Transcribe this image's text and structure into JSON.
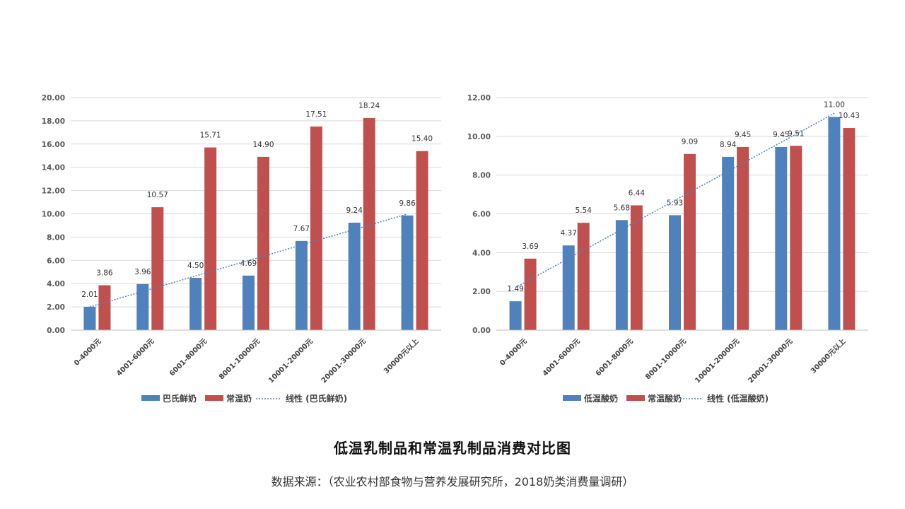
{
  "caption": {
    "title": "低温乳制品和常温乳制品消费对比图",
    "source": "数据来源：（农业农村部食物与营养发展研究所，2018奶类消费量调研）"
  },
  "colors": {
    "blue": "#4f81bd",
    "red": "#c0504d",
    "grid": "#d9d9d9",
    "trend": "#4f81bd"
  },
  "chart_data": [
    {
      "type": "bar",
      "categories": [
        "0-4000元",
        "4001-6000元",
        "6001-8000元",
        "8001-10000元",
        "10001-20000元",
        "20001-30000元",
        "30000元以上"
      ],
      "series": [
        {
          "name": "巴氏鲜奶",
          "values": [
            2.01,
            3.96,
            4.5,
            4.69,
            7.67,
            9.24,
            9.86
          ],
          "labels": [
            "2.01",
            "3.96",
            "4.50",
            "4.69",
            "7.67",
            "9.24",
            "9.86"
          ],
          "color": "#4f81bd"
        },
        {
          "name": "常温奶",
          "values": [
            3.86,
            10.57,
            15.71,
            14.9,
            17.51,
            18.24,
            15.4
          ],
          "labels": [
            "3.86",
            "10.57",
            "15.71",
            "14.90",
            "17.51",
            "18.24",
            "15.40"
          ],
          "color": "#c0504d"
        }
      ],
      "trendline": {
        "name": "线性 (巴氏鲜奶)",
        "of_series": 0
      },
      "yticks": [
        "0.00",
        "2.00",
        "4.00",
        "6.00",
        "8.00",
        "10.00",
        "12.00",
        "14.00",
        "16.00",
        "18.00",
        "20.00"
      ],
      "ylim": [
        0,
        20
      ],
      "grid": true,
      "legend": "bottom"
    },
    {
      "type": "bar",
      "categories": [
        "0-4000元",
        "4001-6000元",
        "6001-8000元",
        "8001-10000元",
        "10001-20000元",
        "20001-30000元",
        "30000元以上"
      ],
      "series": [
        {
          "name": "低温酸奶",
          "values": [
            1.49,
            4.37,
            5.68,
            5.93,
            8.94,
            9.45,
            11.0
          ],
          "labels": [
            "1.49",
            "4.37",
            "5.68",
            "5.93",
            "8.94",
            "9.45",
            "11.00"
          ],
          "color": "#4f81bd"
        },
        {
          "name": "常温酸奶",
          "values": [
            3.69,
            5.54,
            6.44,
            9.09,
            9.45,
            9.51,
            10.43
          ],
          "labels": [
            "3.69",
            "5.54",
            "6.44",
            "9.09",
            "9.45",
            "9.51",
            "10.43"
          ],
          "color": "#c0504d"
        }
      ],
      "trendline": {
        "name": "线性 (低温酸奶)",
        "of_series": 0
      },
      "yticks": [
        "0.00",
        "2.00",
        "4.00",
        "6.00",
        "8.00",
        "10.00",
        "12.00"
      ],
      "ylim": [
        0,
        12
      ],
      "grid": true,
      "legend": "bottom"
    }
  ]
}
